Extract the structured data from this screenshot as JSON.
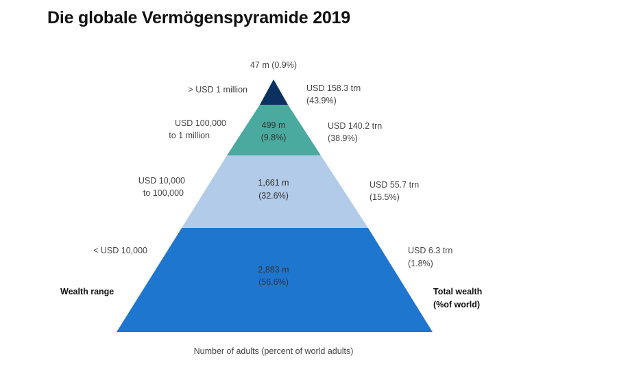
{
  "title": "Die globale Vermögenspyramide 2019",
  "chart_data": {
    "type": "pyramid",
    "levels": [
      {
        "range": "> USD 1 million",
        "range_lines": [
          "> USD 1 million"
        ],
        "adults": "47 m",
        "adults_pct": "(0.9%)",
        "wealth": "USD 158.3 trn",
        "wealth_pct": "(43.9%)",
        "color": "#0b3160"
      },
      {
        "range": "USD 100,000 to 1 million",
        "range_lines": [
          "USD 100,000",
          "to 1 million"
        ],
        "adults": "499 m",
        "adults_pct": "(9.8%)",
        "wealth": "USD 140.2 trn",
        "wealth_pct": "(38.9%)",
        "color": "#4aaa9f"
      },
      {
        "range": "USD 10,000 to 100,000",
        "range_lines": [
          "USD 10,000",
          "to 100,000"
        ],
        "adults": "1,661 m",
        "adults_pct": "(32.6%)",
        "wealth": "USD 55.7 trn",
        "wealth_pct": "(15.5%)",
        "color": "#b2cbe9"
      },
      {
        "range": "< USD 10,000",
        "range_lines": [
          "< USD 10,000"
        ],
        "adults": "2,883 m",
        "adults_pct": "(56.6%)",
        "wealth": "USD 6.3 trn",
        "wealth_pct": "(1.8%)",
        "color": "#1f76cf"
      }
    ],
    "left_axis_label": "Wealth range",
    "right_axis_label_lines": [
      "Total wealth",
      "(%of world)"
    ],
    "bottom_label": "Number of adults (percent of world adults)"
  }
}
